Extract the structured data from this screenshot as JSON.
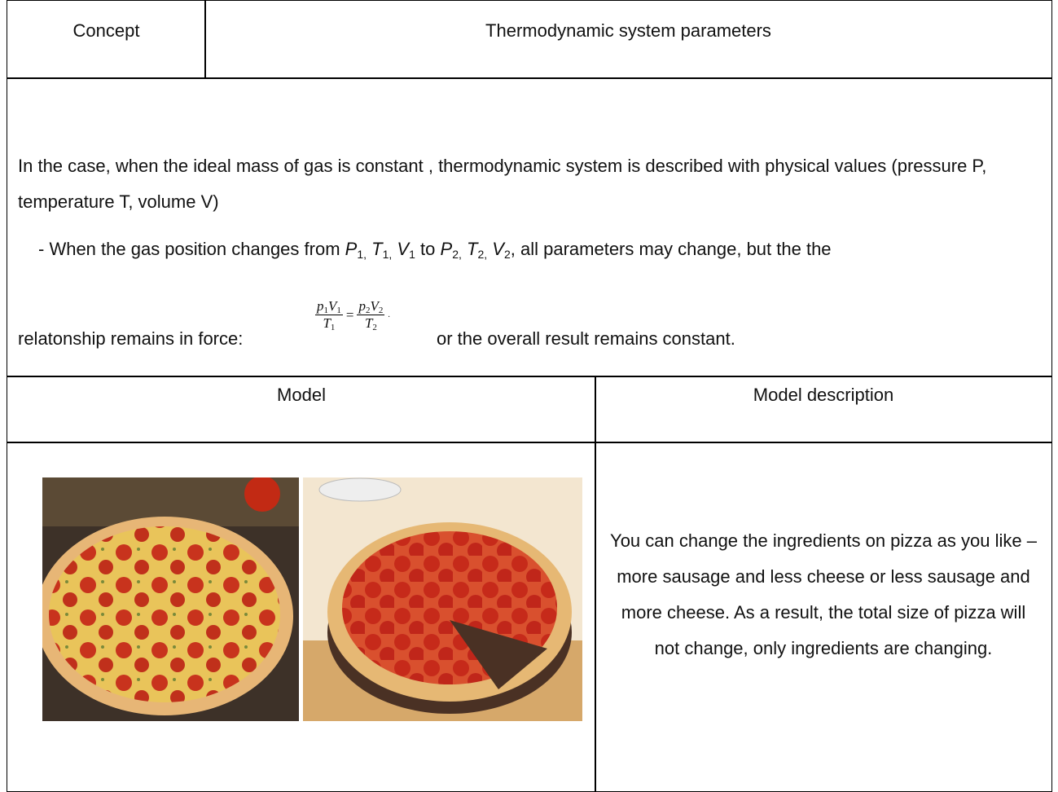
{
  "header": {
    "left": "Concept",
    "right": "Thermodynamic system parameters"
  },
  "concept": {
    "paragraph1": "In the case, when the ideal mass of gas is constant , thermodynamic system is described with physical values (pressure P, temperature T, volume V)",
    "paragraph2": {
      "intro": "- When the gas position changes from",
      "state1": [
        {
          "symbol": "P",
          "sub": "1,"
        },
        {
          "symbol": "T",
          "sub": "1,"
        },
        {
          "symbol": "V",
          "sub": "1"
        }
      ],
      "joiner": "to",
      "state2": [
        {
          "symbol": "P",
          "sub": "2,"
        },
        {
          "symbol": "T",
          "sub": "2,"
        },
        {
          "symbol": "V",
          "sub": "2"
        }
      ],
      "outro": ", all parameters may change, but the the"
    },
    "paragraph3": {
      "before": "relatonship remains in force:",
      "formula": {
        "left_numerator": [
          {
            "symbol": "p",
            "sub": "1"
          },
          {
            "symbol": "V",
            "sub": "1"
          }
        ],
        "left_denominator": {
          "symbol": "T",
          "sub": "1"
        },
        "equals": "=",
        "right_numerator": [
          {
            "symbol": "p",
            "sub": "2"
          },
          {
            "symbol": "V",
            "sub": "2"
          }
        ],
        "right_denominator": {
          "symbol": "T",
          "sub": "2"
        },
        "end": "."
      },
      "after": "or the overall result remains constant."
    }
  },
  "model": {
    "header_left": "Model",
    "header_right": "Model description",
    "description": "You can change the ingredients on pizza as you like – more sausage and less cheese or less sausage and more cheese. As a result, the total size of pizza will not change, only ingredients are changing."
  }
}
